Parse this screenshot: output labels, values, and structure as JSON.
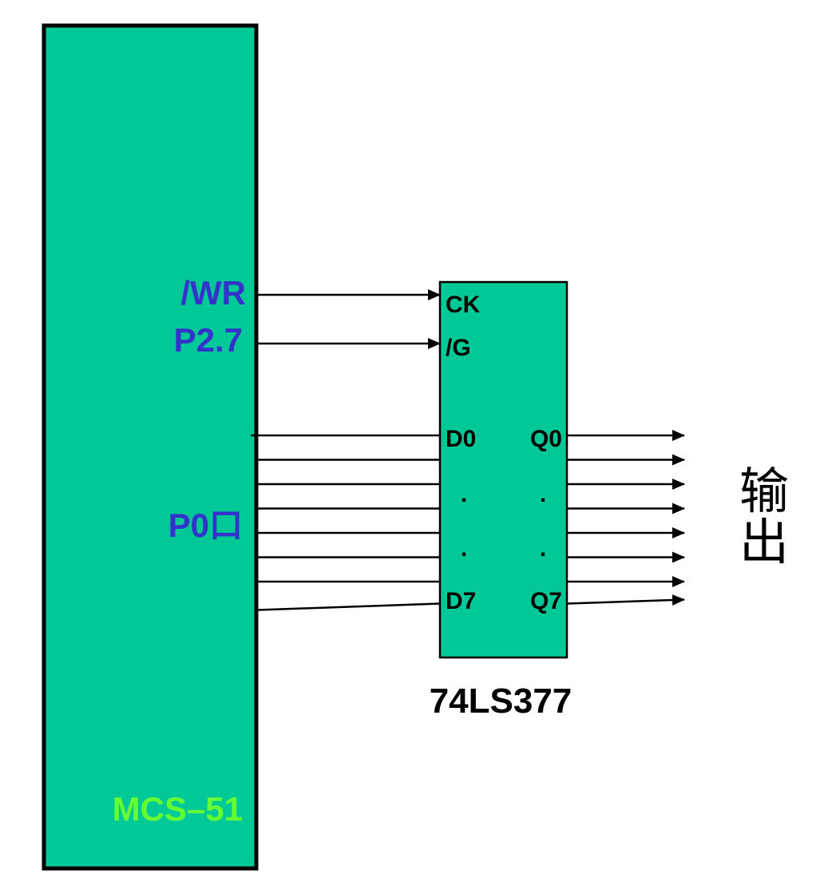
{
  "colors": {
    "block_fill": "#00c896",
    "block_border": "#000000",
    "signal_label": "#3333cc",
    "mcu_label": "#66ff33",
    "wire": "#000000"
  },
  "mcu": {
    "name": "MCS–51",
    "pin_wr": "/WR",
    "pin_p27": "P2.7",
    "pin_p0": "P0口"
  },
  "latch": {
    "name": "74LS377",
    "pin_ck": "CK",
    "pin_g": "/G",
    "pin_d0": "D0",
    "pin_d7": "D7",
    "pin_q0": "Q0",
    "pin_q7": "Q7",
    "ellipsis": "."
  },
  "output": {
    "char1": "输",
    "char2": "出"
  },
  "bus": {
    "data_lines": 8
  }
}
